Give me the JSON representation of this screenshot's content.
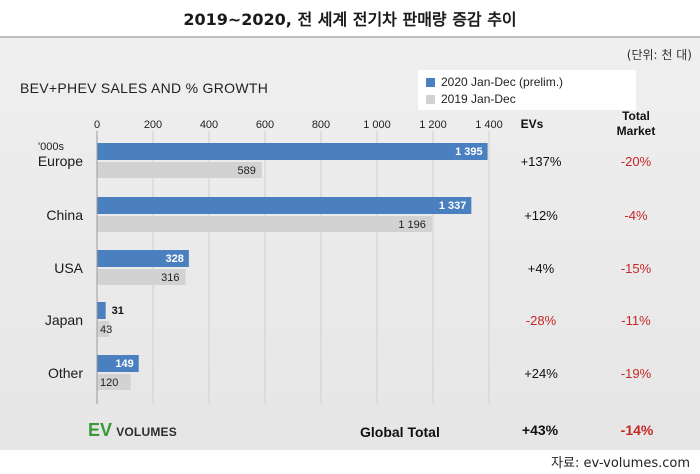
{
  "header": {
    "title": "2019~2020, 전 세계 전기차 판매량 증감 추이",
    "unit": "(단위: 천 대)"
  },
  "chart_data": {
    "type": "bar",
    "orientation": "horizontal",
    "title": "BEV+PHEV SALES AND % GROWTH",
    "unit_label": "'000s",
    "xlim": [
      0,
      1400
    ],
    "xticks": [
      0,
      200,
      400,
      600,
      800,
      1000,
      1200,
      1400
    ],
    "xtick_labels": [
      "0",
      "200",
      "400",
      "600",
      "800",
      "1 000",
      "1 200",
      "1 400"
    ],
    "categories": [
      "Europe",
      "China",
      "USA",
      "Japan",
      "Other"
    ],
    "series": [
      {
        "name": "2020 Jan-Dec (prelim.)",
        "color": "#4a7fc0",
        "values": [
          1395,
          1337,
          328,
          31,
          149
        ],
        "labels": [
          "1 395",
          "1 337",
          "328",
          "31",
          "149"
        ]
      },
      {
        "name": "2019 Jan-Dec",
        "color": "#d2d2d2",
        "values": [
          589,
          1196,
          316,
          43,
          120
        ],
        "labels": [
          "589",
          "1 196",
          "316",
          "43",
          "120"
        ]
      }
    ],
    "growth_columns": {
      "evs_header": "EVs",
      "market_header": [
        "Total",
        "Market"
      ],
      "evs": [
        "+137%",
        "+12%",
        "+4%",
        "-28%",
        "+24%"
      ],
      "market": [
        "-20%",
        "-4%",
        "-15%",
        "-11%",
        "-19%"
      ]
    },
    "legend_position": "top-right",
    "grid": true
  },
  "footer": {
    "brand_ev": "EV",
    "brand_volumes": "VOLUMES",
    "global_label": "Global Total",
    "global_evs": "+43%",
    "global_market": "-14%",
    "source": "자료: ev-volumes.com"
  },
  "colors": {
    "negative": "#c62828",
    "bar_2020": "#4a7fc0",
    "bar_2019": "#d2d2d2",
    "brand_green": "#3a9a3a"
  }
}
